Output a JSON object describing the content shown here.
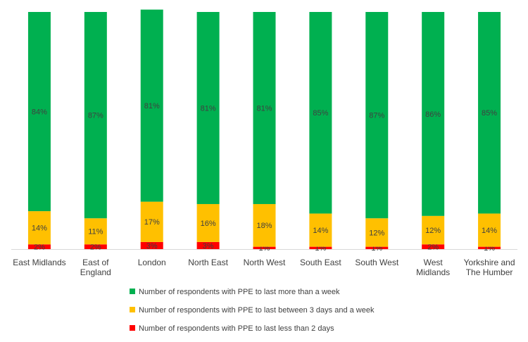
{
  "chart_data": {
    "type": "stacked-bar",
    "categories": [
      "East Midlands",
      "East of\nEngland",
      "London",
      "North East",
      "North West",
      "South East",
      "South West",
      "West\nMidlands",
      "Yorkshire and\nThe Humber"
    ],
    "series": [
      {
        "name": "Number of respondents with PPE to last less than 2 days",
        "color": "#ff0000",
        "values": [
          2,
          2,
          3,
          3,
          1,
          1,
          1,
          2,
          1
        ],
        "value_labels": [
          "2%",
          "2%",
          "3%",
          "3%",
          "1%",
          "1%",
          "1%",
          "2%",
          "1%"
        ]
      },
      {
        "name": "Number of respondents with PPE to last between 3 days and a week",
        "color": "#ffc000",
        "values": [
          14,
          11,
          17,
          16,
          18,
          14,
          12,
          12,
          14
        ],
        "value_labels": [
          "14%",
          "11%",
          "17%",
          "16%",
          "18%",
          "14%",
          "12%",
          "12%",
          "14%"
        ]
      },
      {
        "name": "Number of respondents with PPE to last more than a week",
        "color": "#00b050",
        "values": [
          84,
          87,
          81,
          81,
          81,
          85,
          87,
          86,
          85
        ],
        "value_labels": [
          "84%",
          "87%",
          "81%",
          "81%",
          "81%",
          "85%",
          "87%",
          "86%",
          "85%"
        ]
      }
    ]
  }
}
